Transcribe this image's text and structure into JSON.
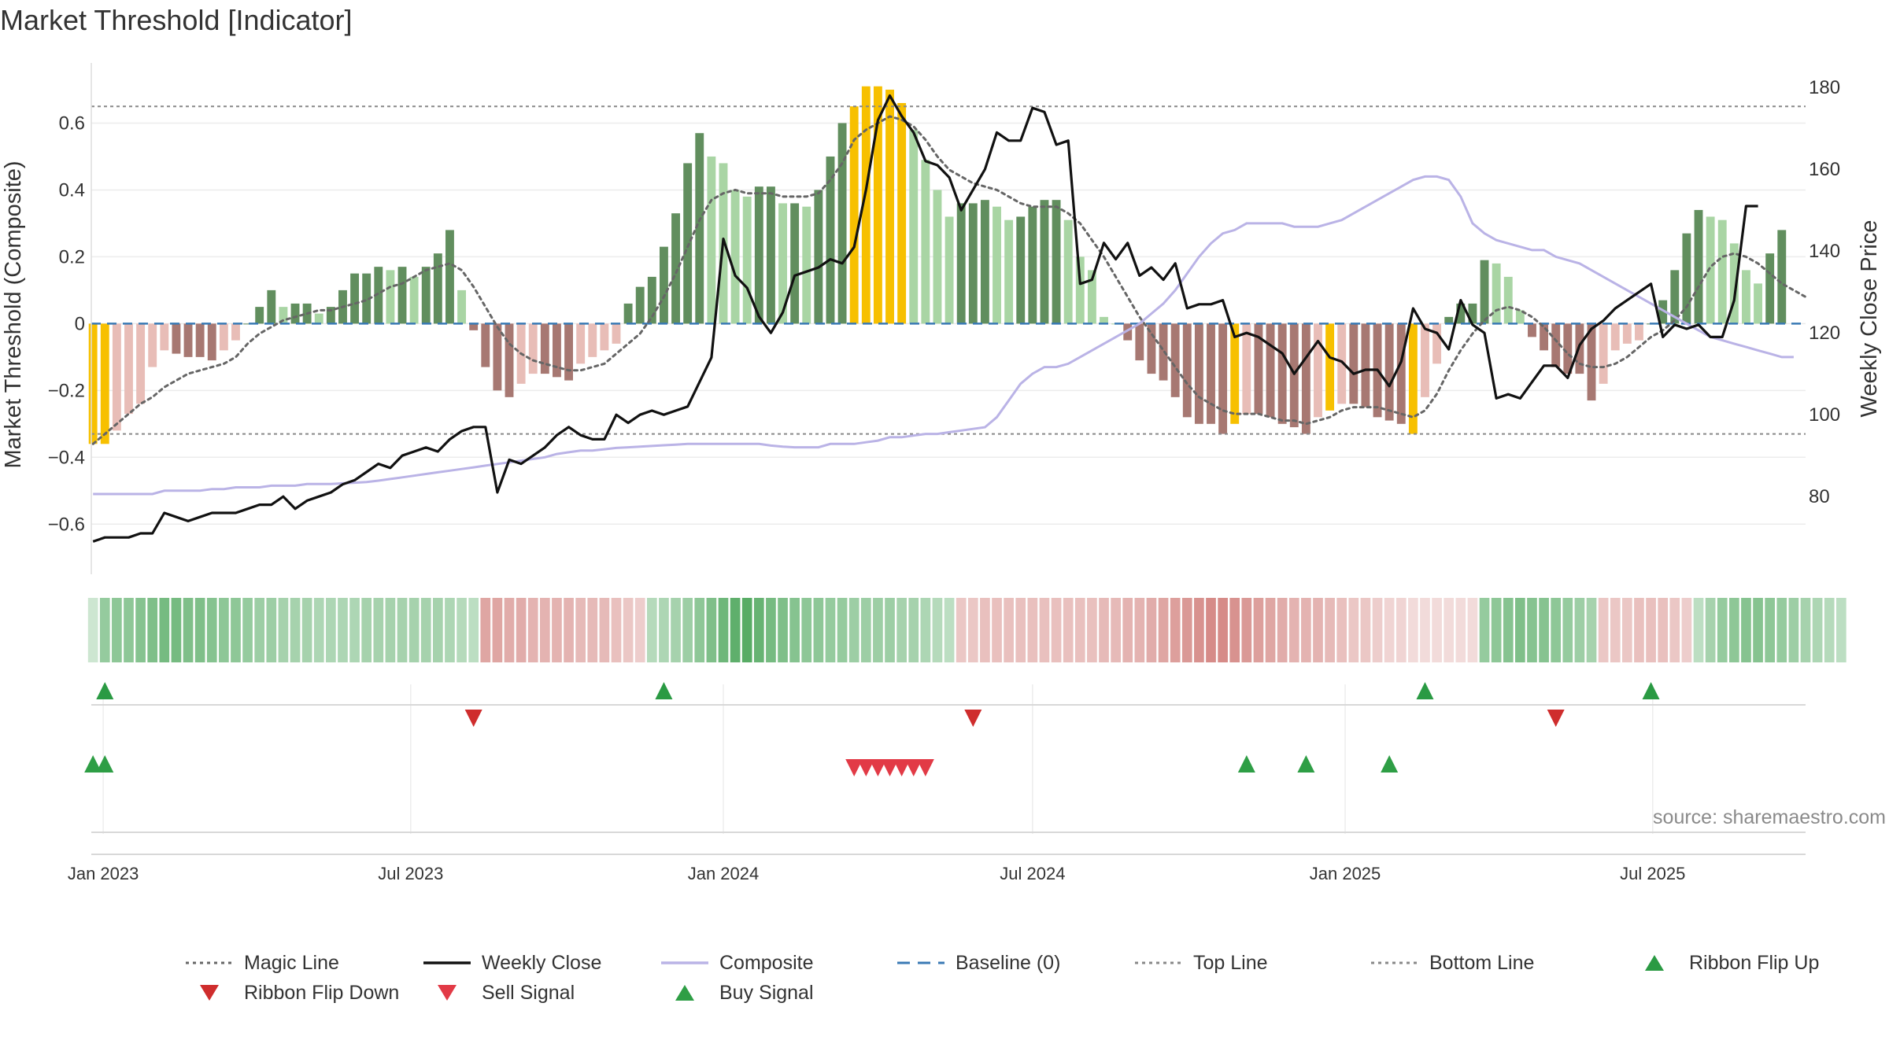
{
  "chart_data": {
    "type": "bar",
    "title": "Market Threshold [Indicator]",
    "ylabel": "Market Threshold (Composite)",
    "y2label": "Weekly Close Price",
    "ylim": [
      -0.75,
      0.78
    ],
    "y2lim": [
      61,
      186
    ],
    "yticks": [
      "0.6",
      "0.4",
      "0.2",
      "0",
      "−0.2",
      "−0.4",
      "−0.6"
    ],
    "y2ticks": [
      "180",
      "160",
      "140",
      "120",
      "100",
      "80"
    ],
    "x_range": [
      "2022-12-25",
      "2025-09-29"
    ],
    "date_ticks": [
      {
        "date": "2023-01-01",
        "label": "Jan 2023"
      },
      {
        "date": "2023-07-01",
        "label": "Jul 2023"
      },
      {
        "date": "2024-01-01",
        "label": "Jan 2024"
      },
      {
        "date": "2024-07-01",
        "label": "Jul 2024"
      },
      {
        "date": "2025-01-01",
        "label": "Jan 2025"
      },
      {
        "date": "2025-07-01",
        "label": "Jul 2025"
      }
    ],
    "top_line": 0.65,
    "bottom_line": -0.33,
    "baseline": 0,
    "bar_start_date": "2022-12-26",
    "bar_interval_days": 7,
    "bars": [
      -0.36,
      -0.36,
      -0.32,
      -0.27,
      -0.24,
      -0.13,
      -0.08,
      -0.09,
      -0.1,
      -0.1,
      -0.11,
      -0.08,
      -0.05,
      0.0,
      0.05,
      0.1,
      0.05,
      0.06,
      0.06,
      0.03,
      0.05,
      0.1,
      0.15,
      0.15,
      0.17,
      0.16,
      0.17,
      0.14,
      0.17,
      0.21,
      0.28,
      0.1,
      -0.02,
      -0.13,
      -0.2,
      -0.22,
      -0.18,
      -0.15,
      -0.15,
      -0.16,
      -0.17,
      -0.12,
      -0.1,
      -0.08,
      -0.06,
      0.06,
      0.11,
      0.14,
      0.23,
      0.33,
      0.48,
      0.57,
      0.5,
      0.48,
      0.4,
      0.38,
      0.41,
      0.41,
      0.36,
      0.36,
      0.35,
      0.4,
      0.5,
      0.6,
      0.65,
      0.71,
      0.71,
      0.7,
      0.66,
      0.58,
      0.49,
      0.4,
      0.32,
      0.36,
      0.36,
      0.37,
      0.35,
      0.31,
      0.32,
      0.35,
      0.37,
      0.37,
      0.31,
      0.2,
      0.16,
      0.02,
      0.0,
      -0.05,
      -0.11,
      -0.15,
      -0.17,
      -0.22,
      -0.28,
      -0.3,
      -0.3,
      -0.33,
      -0.3,
      -0.27,
      -0.27,
      -0.28,
      -0.3,
      -0.31,
      -0.33,
      -0.28,
      -0.26,
      -0.24,
      -0.24,
      -0.25,
      -0.28,
      -0.29,
      -0.3,
      -0.33,
      -0.22,
      -0.12,
      0.02,
      0.06,
      0.06,
      0.19,
      0.18,
      0.14,
      0.04,
      -0.04,
      -0.08,
      -0.13,
      -0.15,
      -0.15,
      -0.23,
      -0.18,
      -0.08,
      -0.06,
      -0.05,
      0.0,
      0.07,
      0.16,
      0.27,
      0.34,
      0.32,
      0.31,
      0.24,
      0.16,
      0.12,
      0.21,
      0.28
    ],
    "bar_colors": {
      "up_strong": "#618e5e",
      "up_weak": "#a9d5a4",
      "down_strong": "#a77872",
      "down_weak": "#e8bdb7",
      "extreme": "#f7c000"
    },
    "extreme_weeks": [
      0,
      1,
      64,
      65,
      66,
      67,
      68,
      96,
      104,
      111
    ],
    "magic_line": [
      -0.36,
      -0.33,
      -0.3,
      -0.27,
      -0.24,
      -0.22,
      -0.19,
      -0.17,
      -0.15,
      -0.14,
      -0.13,
      -0.12,
      -0.1,
      -0.06,
      -0.03,
      -0.01,
      0.01,
      0.02,
      0.03,
      0.04,
      0.04,
      0.05,
      0.06,
      0.07,
      0.09,
      0.11,
      0.12,
      0.14,
      0.16,
      0.17,
      0.18,
      0.16,
      0.11,
      0.05,
      -0.01,
      -0.06,
      -0.09,
      -0.11,
      -0.12,
      -0.13,
      -0.14,
      -0.14,
      -0.13,
      -0.12,
      -0.09,
      -0.06,
      -0.03,
      0.02,
      0.08,
      0.15,
      0.23,
      0.31,
      0.37,
      0.39,
      0.4,
      0.39,
      0.39,
      0.39,
      0.38,
      0.38,
      0.38,
      0.39,
      0.43,
      0.48,
      0.55,
      0.58,
      0.6,
      0.62,
      0.61,
      0.59,
      0.55,
      0.5,
      0.46,
      0.44,
      0.42,
      0.41,
      0.4,
      0.38,
      0.36,
      0.35,
      0.35,
      0.35,
      0.33,
      0.3,
      0.25,
      0.2,
      0.14,
      0.08,
      0.02,
      -0.03,
      -0.08,
      -0.13,
      -0.18,
      -0.22,
      -0.24,
      -0.26,
      -0.27,
      -0.27,
      -0.27,
      -0.28,
      -0.29,
      -0.29,
      -0.3,
      -0.29,
      -0.28,
      -0.26,
      -0.25,
      -0.25,
      -0.25,
      -0.26,
      -0.27,
      -0.28,
      -0.26,
      -0.21,
      -0.14,
      -0.08,
      -0.03,
      0.01,
      0.04,
      0.05,
      0.04,
      0.02,
      -0.01,
      -0.05,
      -0.09,
      -0.12,
      -0.13,
      -0.13,
      -0.12,
      -0.1,
      -0.07,
      -0.04,
      -0.02,
      0.01,
      0.05,
      0.11,
      0.17,
      0.2,
      0.21,
      0.2,
      0.18,
      0.15,
      0.12,
      0.1,
      0.08
    ],
    "composite": [
      -0.51,
      -0.51,
      -0.51,
      -0.51,
      -0.51,
      -0.51,
      -0.5,
      -0.5,
      -0.5,
      -0.5,
      -0.495,
      -0.495,
      -0.49,
      -0.49,
      -0.49,
      -0.485,
      -0.485,
      -0.485,
      -0.48,
      -0.48,
      -0.48,
      -0.478,
      -0.476,
      -0.474,
      -0.47,
      -0.465,
      -0.46,
      -0.455,
      -0.45,
      -0.445,
      -0.44,
      -0.435,
      -0.43,
      -0.425,
      -0.42,
      -0.415,
      -0.41,
      -0.405,
      -0.4,
      -0.39,
      -0.385,
      -0.38,
      -0.38,
      -0.376,
      -0.372,
      -0.37,
      -0.368,
      -0.366,
      -0.364,
      -0.362,
      -0.36,
      -0.36,
      -0.36,
      -0.36,
      -0.36,
      -0.36,
      -0.36,
      -0.365,
      -0.368,
      -0.37,
      -0.37,
      -0.37,
      -0.36,
      -0.36,
      -0.36,
      -0.355,
      -0.35,
      -0.34,
      -0.34,
      -0.335,
      -0.33,
      -0.33,
      -0.325,
      -0.32,
      -0.315,
      -0.31,
      -0.28,
      -0.23,
      -0.18,
      -0.15,
      -0.13,
      -0.13,
      -0.12,
      -0.1,
      -0.08,
      -0.06,
      -0.04,
      -0.02,
      0.0,
      0.03,
      0.06,
      0.1,
      0.15,
      0.2,
      0.24,
      0.27,
      0.28,
      0.3,
      0.3,
      0.3,
      0.3,
      0.29,
      0.29,
      0.29,
      0.3,
      0.31,
      0.33,
      0.35,
      0.37,
      0.39,
      0.41,
      0.43,
      0.44,
      0.44,
      0.43,
      0.38,
      0.3,
      0.27,
      0.25,
      0.24,
      0.23,
      0.22,
      0.22,
      0.2,
      0.19,
      0.18,
      0.16,
      0.14,
      0.12,
      0.1,
      0.08,
      0.06,
      0.04,
      0.02,
      0.0,
      -0.02,
      -0.04,
      -0.05,
      -0.06,
      -0.07,
      -0.08,
      -0.09,
      -0.1,
      -0.1
    ],
    "weekly_close": [
      {
        "d": "2022-12-26",
        "v": 69
      },
      {
        "d": "2023-01-02",
        "v": 70
      },
      {
        "d": "2023-01-09",
        "v": 70
      },
      {
        "d": "2023-01-16",
        "v": 70
      },
      {
        "d": "2023-01-23",
        "v": 71
      },
      {
        "d": "2023-01-30",
        "v": 71
      },
      {
        "d": "2023-02-06",
        "v": 76
      },
      {
        "d": "2023-02-13",
        "v": 75
      },
      {
        "d": "2023-02-20",
        "v": 74
      },
      {
        "d": "2023-02-27",
        "v": 75
      },
      {
        "d": "2023-03-06",
        "v": 76
      },
      {
        "d": "2023-03-13",
        "v": 76
      },
      {
        "d": "2023-03-20",
        "v": 76
      },
      {
        "d": "2023-03-27",
        "v": 77
      },
      {
        "d": "2023-04-03",
        "v": 78
      },
      {
        "d": "2023-04-10",
        "v": 78
      },
      {
        "d": "2023-04-17",
        "v": 80
      },
      {
        "d": "2023-04-24",
        "v": 77
      },
      {
        "d": "2023-05-01",
        "v": 79
      },
      {
        "d": "2023-05-08",
        "v": 80
      },
      {
        "d": "2023-05-15",
        "v": 81
      },
      {
        "d": "2023-05-22",
        "v": 83
      },
      {
        "d": "2023-05-29",
        "v": 84
      },
      {
        "d": "2023-06-05",
        "v": 86
      },
      {
        "d": "2023-06-12",
        "v": 88
      },
      {
        "d": "2023-06-19",
        "v": 87
      },
      {
        "d": "2023-06-26",
        "v": 90
      },
      {
        "d": "2023-07-03",
        "v": 91
      },
      {
        "d": "2023-07-10",
        "v": 92
      },
      {
        "d": "2023-07-17",
        "v": 91
      },
      {
        "d": "2023-07-24",
        "v": 94
      },
      {
        "d": "2023-07-31",
        "v": 96
      },
      {
        "d": "2023-08-07",
        "v": 97
      },
      {
        "d": "2023-08-14",
        "v": 97
      },
      {
        "d": "2023-08-21",
        "v": 81
      },
      {
        "d": "2023-08-28",
        "v": 89
      },
      {
        "d": "2023-09-04",
        "v": 88
      },
      {
        "d": "2023-09-11",
        "v": 90
      },
      {
        "d": "2023-09-18",
        "v": 92
      },
      {
        "d": "2023-09-25",
        "v": 95
      },
      {
        "d": "2023-10-02",
        "v": 97
      },
      {
        "d": "2023-10-09",
        "v": 95
      },
      {
        "d": "2023-10-16",
        "v": 94
      },
      {
        "d": "2023-10-23",
        "v": 94
      },
      {
        "d": "2023-10-30",
        "v": 100
      },
      {
        "d": "2023-11-06",
        "v": 98
      },
      {
        "d": "2023-11-13",
        "v": 100
      },
      {
        "d": "2023-11-20",
        "v": 101
      },
      {
        "d": "2023-11-27",
        "v": 100
      },
      {
        "d": "2023-12-04",
        "v": 101
      },
      {
        "d": "2023-12-11",
        "v": 102
      },
      {
        "d": "2023-12-18",
        "v": 108
      },
      {
        "d": "2023-12-25",
        "v": 114
      },
      {
        "d": "2024-01-01",
        "v": 143
      },
      {
        "d": "2024-01-08",
        "v": 134
      },
      {
        "d": "2024-01-15",
        "v": 131
      },
      {
        "d": "2024-01-22",
        "v": 124
      },
      {
        "d": "2024-01-29",
        "v": 120
      },
      {
        "d": "2024-02-05",
        "v": 125
      },
      {
        "d": "2024-02-12",
        "v": 134
      },
      {
        "d": "2024-02-19",
        "v": 135
      },
      {
        "d": "2024-02-26",
        "v": 136
      },
      {
        "d": "2024-03-04",
        "v": 138
      },
      {
        "d": "2024-03-11",
        "v": 137
      },
      {
        "d": "2024-03-18",
        "v": 141
      },
      {
        "d": "2024-03-25",
        "v": 155
      },
      {
        "d": "2024-04-01",
        "v": 172
      },
      {
        "d": "2024-04-08",
        "v": 178
      },
      {
        "d": "2024-04-15",
        "v": 173
      },
      {
        "d": "2024-04-22",
        "v": 169
      },
      {
        "d": "2024-04-29",
        "v": 162
      },
      {
        "d": "2024-05-06",
        "v": 161
      },
      {
        "d": "2024-05-13",
        "v": 158
      },
      {
        "d": "2024-05-20",
        "v": 150
      },
      {
        "d": "2024-05-27",
        "v": 155
      },
      {
        "d": "2024-06-03",
        "v": 160
      },
      {
        "d": "2024-06-10",
        "v": 169
      },
      {
        "d": "2024-06-17",
        "v": 167
      },
      {
        "d": "2024-06-24",
        "v": 167
      },
      {
        "d": "2024-07-01",
        "v": 175
      },
      {
        "d": "2024-07-08",
        "v": 174
      },
      {
        "d": "2024-07-15",
        "v": 166
      },
      {
        "d": "2024-07-22",
        "v": 167
      },
      {
        "d": "2024-07-29",
        "v": 132
      },
      {
        "d": "2024-08-05",
        "v": 133
      },
      {
        "d": "2024-08-12",
        "v": 142
      },
      {
        "d": "2024-08-19",
        "v": 138
      },
      {
        "d": "2024-08-26",
        "v": 142
      },
      {
        "d": "2024-09-02",
        "v": 134
      },
      {
        "d": "2024-09-09",
        "v": 136
      },
      {
        "d": "2024-09-16",
        "v": 133
      },
      {
        "d": "2024-09-23",
        "v": 137
      },
      {
        "d": "2024-09-30",
        "v": 126
      },
      {
        "d": "2024-10-07",
        "v": 127
      },
      {
        "d": "2024-10-14",
        "v": 127
      },
      {
        "d": "2024-10-21",
        "v": 128
      },
      {
        "d": "2024-10-28",
        "v": 119
      },
      {
        "d": "2024-11-04",
        "v": 120
      },
      {
        "d": "2024-11-11",
        "v": 119
      },
      {
        "d": "2024-11-18",
        "v": 117
      },
      {
        "d": "2024-11-25",
        "v": 115
      },
      {
        "d": "2024-12-02",
        "v": 110
      },
      {
        "d": "2024-12-09",
        "v": 114
      },
      {
        "d": "2024-12-16",
        "v": 118
      },
      {
        "d": "2024-12-23",
        "v": 114
      },
      {
        "d": "2024-12-30",
        "v": 113
      },
      {
        "d": "2025-01-06",
        "v": 110
      },
      {
        "d": "2025-01-13",
        "v": 111
      },
      {
        "d": "2025-01-20",
        "v": 111
      },
      {
        "d": "2025-01-27",
        "v": 107
      },
      {
        "d": "2025-02-03",
        "v": 113
      },
      {
        "d": "2025-02-10",
        "v": 126
      },
      {
        "d": "2025-02-17",
        "v": 121
      },
      {
        "d": "2025-02-24",
        "v": 120
      },
      {
        "d": "2025-03-03",
        "v": 116
      },
      {
        "d": "2025-03-10",
        "v": 128
      },
      {
        "d": "2025-03-17",
        "v": 122
      },
      {
        "d": "2025-03-24",
        "v": 120
      },
      {
        "d": "2025-03-31",
        "v": 104
      },
      {
        "d": "2025-04-07",
        "v": 105
      },
      {
        "d": "2025-04-14",
        "v": 104
      },
      {
        "d": "2025-04-21",
        "v": 108
      },
      {
        "d": "2025-04-28",
        "v": 112
      },
      {
        "d": "2025-05-05",
        "v": 112
      },
      {
        "d": "2025-05-12",
        "v": 109
      },
      {
        "d": "2025-05-19",
        "v": 117
      },
      {
        "d": "2025-05-26",
        "v": 121
      },
      {
        "d": "2025-06-02",
        "v": 123
      },
      {
        "d": "2025-06-09",
        "v": 126
      },
      {
        "d": "2025-06-16",
        "v": 128
      },
      {
        "d": "2025-06-23",
        "v": 130
      },
      {
        "d": "2025-06-30",
        "v": 132
      },
      {
        "d": "2025-07-07",
        "v": 119
      },
      {
        "d": "2025-07-14",
        "v": 122
      },
      {
        "d": "2025-07-21",
        "v": 121
      },
      {
        "d": "2025-07-28",
        "v": 122
      },
      {
        "d": "2025-08-04",
        "v": 119
      },
      {
        "d": "2025-08-11",
        "v": 119
      },
      {
        "d": "2025-08-18",
        "v": 128
      },
      {
        "d": "2025-08-25",
        "v": 151
      },
      {
        "d": "2025-09-01",
        "v": 151
      }
    ],
    "ribbon_strength": [
      0.2,
      0.55,
      0.6,
      0.6,
      0.65,
      0.7,
      0.75,
      0.75,
      0.7,
      0.7,
      0.65,
      0.6,
      0.6,
      0.55,
      0.5,
      0.5,
      0.45,
      0.45,
      0.45,
      0.4,
      0.4,
      0.4,
      0.4,
      0.45,
      0.45,
      0.45,
      0.45,
      0.45,
      0.45,
      0.45,
      0.4,
      0.35,
      0.3,
      -0.55,
      -0.55,
      -0.5,
      -0.5,
      -0.45,
      -0.45,
      -0.45,
      -0.45,
      -0.4,
      -0.4,
      -0.4,
      -0.35,
      -0.3,
      -0.25,
      0.35,
      0.4,
      0.45,
      0.5,
      0.6,
      0.7,
      0.8,
      0.9,
      0.95,
      0.85,
      0.75,
      0.7,
      0.65,
      0.6,
      0.6,
      0.55,
      0.55,
      0.5,
      0.5,
      0.5,
      0.5,
      0.45,
      0.45,
      0.4,
      0.35,
      0.3,
      -0.3,
      -0.3,
      -0.35,
      -0.35,
      -0.35,
      -0.35,
      -0.35,
      -0.35,
      -0.35,
      -0.35,
      -0.35,
      -0.35,
      -0.4,
      -0.4,
      -0.45,
      -0.45,
      -0.5,
      -0.55,
      -0.6,
      -0.65,
      -0.7,
      -0.75,
      -0.75,
      -0.7,
      -0.65,
      -0.6,
      -0.55,
      -0.5,
      -0.45,
      -0.45,
      -0.45,
      -0.4,
      -0.35,
      -0.3,
      -0.3,
      -0.25,
      -0.2,
      -0.2,
      -0.15,
      -0.15,
      -0.15,
      -0.15,
      -0.15,
      -0.15,
      0.55,
      0.6,
      0.65,
      0.7,
      0.65,
      0.65,
      0.6,
      0.55,
      0.5,
      0.45,
      -0.3,
      -0.3,
      -0.3,
      -0.35,
      -0.35,
      -0.35,
      -0.3,
      -0.25,
      0.3,
      0.45,
      0.55,
      0.6,
      0.65,
      0.65,
      0.6,
      0.55,
      0.5,
      0.45,
      0.4,
      0.35,
      0.3
    ],
    "ribbon_flip_up": [
      "2023-01-02",
      "2023-11-27",
      "2025-02-17",
      "2025-06-30"
    ],
    "ribbon_flip_down": [
      "2023-08-07",
      "2024-05-27",
      "2025-05-05"
    ],
    "sell_signal": [
      "2024-03-18",
      "2024-03-25",
      "2024-04-01",
      "2024-04-08",
      "2024-04-15",
      "2024-04-22",
      "2024-04-29"
    ],
    "buy_signal": [
      "2022-12-26",
      "2023-01-02",
      "2024-11-04",
      "2024-12-09",
      "2025-01-27"
    ],
    "colors": {
      "weekly_close": "#111111",
      "composite": "#bab3e6",
      "magic_line": "#666666",
      "baseline": "#3a7ab5",
      "top_line": "#888888",
      "bottom_line": "#888888",
      "ribbon_up": "#3c9e4c",
      "ribbon_down": "#c45a55",
      "flip_up": "#2a9a43",
      "flip_down": "#cf2d2d",
      "sell": "#e23a46",
      "buy": "#2e9e45"
    },
    "source": "source: sharemaestro.com",
    "legend": [
      {
        "label": "Magic Line",
        "kind": "dotted",
        "color": "#666666"
      },
      {
        "label": "Weekly Close",
        "kind": "solid",
        "color": "#111111"
      },
      {
        "label": "Composite",
        "kind": "solid",
        "color": "#bab3e6"
      },
      {
        "label": "Baseline (0)",
        "kind": "dashed",
        "color": "#3a7ab5"
      },
      {
        "label": "Top Line",
        "kind": "dotted",
        "color": "#888888"
      },
      {
        "label": "Bottom Line",
        "kind": "dotted",
        "color": "#888888"
      },
      {
        "label": "Ribbon Flip Up",
        "kind": "tri-up",
        "color": "#2a9a43"
      },
      {
        "label": "Ribbon Flip Down",
        "kind": "tri-down",
        "color": "#cf2d2d"
      },
      {
        "label": "Sell Signal",
        "kind": "tri-down",
        "color": "#e23a46"
      },
      {
        "label": "Buy Signal",
        "kind": "tri-up",
        "color": "#2e9e45"
      }
    ]
  }
}
